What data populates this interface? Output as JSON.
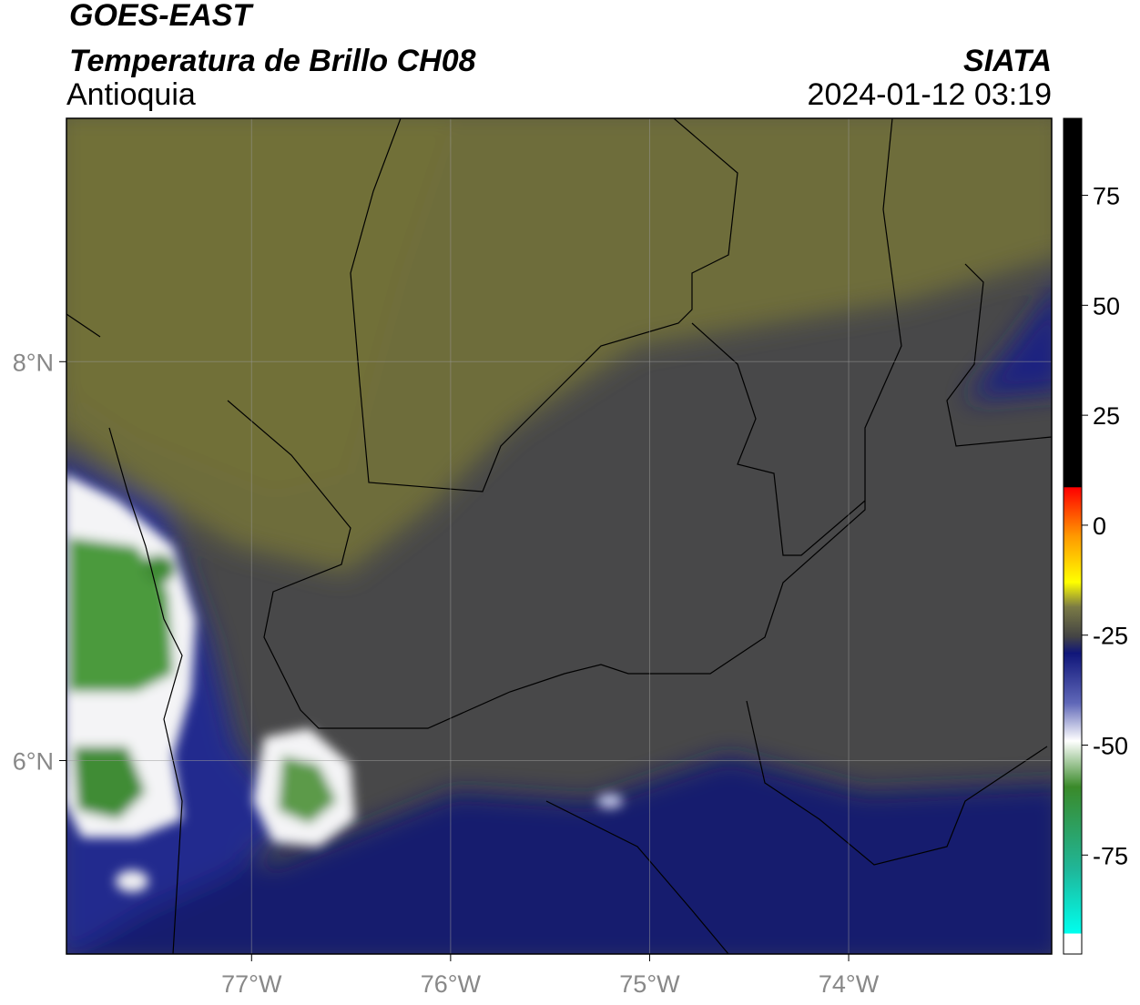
{
  "header": {
    "title": "GOES-EAST",
    "product": "Temperatura de Brillo CH08",
    "region": "Antioquia",
    "agency": "SIATA",
    "datetime": "2024-01-12 03:19"
  },
  "map": {
    "lon_range": [
      -77.93,
      -72.98
    ],
    "lat_range": [
      5.03,
      9.22
    ],
    "lon_ticks": [
      {
        "value": -77,
        "label": "77°W"
      },
      {
        "value": -76,
        "label": "76°W"
      },
      {
        "value": -75,
        "label": "75°W"
      },
      {
        "value": -74,
        "label": "74°W"
      }
    ],
    "lat_ticks": [
      {
        "value": 8,
        "label": "8°N"
      },
      {
        "value": 6,
        "label": "6°N"
      }
    ]
  },
  "colorbar": {
    "range": [
      -97.5,
      92.5
    ],
    "ticks": [
      75,
      50,
      25,
      0,
      -25,
      -50,
      -75
    ]
  }
}
